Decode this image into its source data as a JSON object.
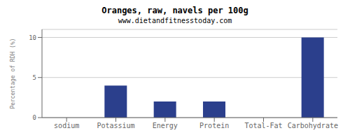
{
  "chart_data": {
    "type": "bar",
    "title": "Oranges, raw, navels per 100g",
    "subtitle": "www.dietandfitnesstoday.com",
    "categories": [
      "sodium",
      "Potassium",
      "Energy",
      "Protein",
      "Total-Fat",
      "Carbohydrate"
    ],
    "values": [
      0,
      4.0,
      2.0,
      2.0,
      0,
      10.0
    ],
    "color": "#2b3f8c",
    "ylabel": "Percentage of RDH (%)",
    "ylim": [
      0,
      11
    ],
    "yticks": [
      0,
      5,
      10
    ],
    "grid": true
  }
}
